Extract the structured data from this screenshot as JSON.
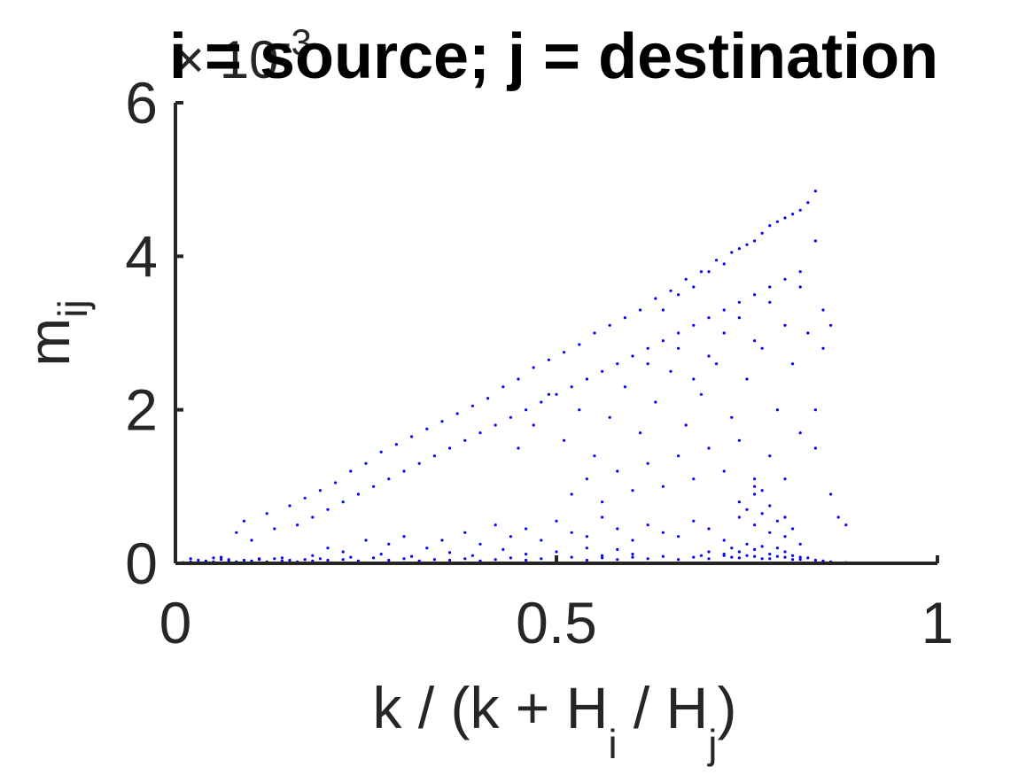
{
  "chart_data": {
    "type": "scatter",
    "title": "i = source; j = destination",
    "xlabel": {
      "text": "k / (k + H",
      "sub_i": "i",
      "mid": " / H",
      "sub_j": "j",
      "end": ")"
    },
    "ylabel": {
      "base": "m",
      "sub": "ij"
    },
    "y_multiplier": {
      "base": "× 10",
      "exponent": "-3"
    },
    "xlim": [
      0,
      1
    ],
    "ylim": [
      0,
      6
    ],
    "x_ticks": [
      {
        "value": 0,
        "label": "0"
      },
      {
        "value": 0.5,
        "label": "0.5"
      },
      {
        "value": 1,
        "label": "1"
      }
    ],
    "y_ticks": [
      {
        "value": 0,
        "label": "0"
      },
      {
        "value": 2,
        "label": "2"
      },
      {
        "value": 4,
        "label": "4"
      },
      {
        "value": 6,
        "label": "6"
      }
    ],
    "grid": false,
    "marker_color": "#0000ff",
    "series": [
      {
        "points": [
          [
            0.01,
            0.01
          ],
          [
            0.02,
            0.02
          ],
          [
            0.03,
            0.01
          ],
          [
            0.04,
            0.03
          ],
          [
            0.05,
            0.02
          ],
          [
            0.06,
            0.05
          ],
          [
            0.07,
            0.03
          ],
          [
            0.08,
            0.02
          ],
          [
            0.09,
            0.04
          ],
          [
            0.1,
            0.03
          ],
          [
            0.11,
            0.05
          ],
          [
            0.12,
            0.02
          ],
          [
            0.13,
            0.06
          ],
          [
            0.14,
            0.03
          ],
          [
            0.15,
            0.04
          ],
          [
            0.16,
            0.02
          ],
          [
            0.17,
            0.05
          ],
          [
            0.18,
            0.03
          ],
          [
            0.19,
            0.06
          ],
          [
            0.2,
            0.04
          ],
          [
            0.22,
            0.05
          ],
          [
            0.24,
            0.03
          ],
          [
            0.26,
            0.07
          ],
          [
            0.28,
            0.04
          ],
          [
            0.3,
            0.06
          ],
          [
            0.32,
            0.03
          ],
          [
            0.34,
            0.05
          ],
          [
            0.36,
            0.04
          ],
          [
            0.38,
            0.06
          ],
          [
            0.4,
            0.03
          ],
          [
            0.42,
            0.05
          ],
          [
            0.44,
            0.07
          ],
          [
            0.46,
            0.04
          ],
          [
            0.48,
            0.06
          ],
          [
            0.5,
            0.05
          ],
          [
            0.52,
            0.08
          ],
          [
            0.54,
            0.04
          ],
          [
            0.56,
            0.07
          ],
          [
            0.58,
            0.05
          ],
          [
            0.6,
            0.08
          ],
          [
            0.62,
            0.06
          ],
          [
            0.64,
            0.09
          ],
          [
            0.66,
            0.05
          ],
          [
            0.68,
            0.08
          ],
          [
            0.7,
            0.06
          ],
          [
            0.72,
            0.1
          ],
          [
            0.74,
            0.07
          ],
          [
            0.76,
            0.09
          ],
          [
            0.78,
            0.06
          ],
          [
            0.8,
            0.08
          ],
          [
            0.82,
            0.05
          ],
          [
            0.84,
            0.04
          ],
          [
            0.86,
            0.02
          ],
          [
            0.88,
            0.01
          ],
          [
            0.08,
            0.4
          ],
          [
            0.09,
            0.55
          ],
          [
            0.1,
            0.3
          ],
          [
            0.12,
            0.65
          ],
          [
            0.13,
            0.45
          ],
          [
            0.15,
            0.75
          ],
          [
            0.16,
            0.5
          ],
          [
            0.17,
            0.85
          ],
          [
            0.18,
            0.6
          ],
          [
            0.19,
            0.95
          ],
          [
            0.2,
            0.7
          ],
          [
            0.21,
            1.05
          ],
          [
            0.22,
            0.8
          ],
          [
            0.23,
            1.2
          ],
          [
            0.24,
            0.9
          ],
          [
            0.25,
            1.3
          ],
          [
            0.26,
            1.0
          ],
          [
            0.27,
            1.45
          ],
          [
            0.28,
            1.1
          ],
          [
            0.29,
            1.55
          ],
          [
            0.3,
            1.2
          ],
          [
            0.31,
            1.65
          ],
          [
            0.32,
            1.3
          ],
          [
            0.33,
            1.75
          ],
          [
            0.34,
            1.4
          ],
          [
            0.35,
            1.85
          ],
          [
            0.36,
            1.5
          ],
          [
            0.37,
            1.95
          ],
          [
            0.38,
            1.6
          ],
          [
            0.39,
            2.05
          ],
          [
            0.4,
            1.7
          ],
          [
            0.41,
            2.15
          ],
          [
            0.42,
            1.8
          ],
          [
            0.43,
            2.3
          ],
          [
            0.44,
            1.9
          ],
          [
            0.45,
            2.4
          ],
          [
            0.46,
            2.0
          ],
          [
            0.47,
            2.55
          ],
          [
            0.48,
            2.1
          ],
          [
            0.49,
            2.65
          ],
          [
            0.5,
            2.2
          ],
          [
            0.51,
            2.75
          ],
          [
            0.52,
            2.3
          ],
          [
            0.53,
            2.85
          ],
          [
            0.54,
            2.4
          ],
          [
            0.55,
            3.0
          ],
          [
            0.56,
            2.5
          ],
          [
            0.57,
            3.1
          ],
          [
            0.58,
            2.6
          ],
          [
            0.59,
            3.2
          ],
          [
            0.6,
            2.7
          ],
          [
            0.61,
            3.3
          ],
          [
            0.62,
            2.8
          ],
          [
            0.63,
            3.45
          ],
          [
            0.64,
            2.9
          ],
          [
            0.65,
            3.55
          ],
          [
            0.66,
            3.0
          ],
          [
            0.67,
            3.7
          ],
          [
            0.68,
            3.1
          ],
          [
            0.69,
            3.8
          ],
          [
            0.7,
            3.2
          ],
          [
            0.71,
            3.95
          ],
          [
            0.72,
            3.3
          ],
          [
            0.73,
            4.05
          ],
          [
            0.74,
            3.4
          ],
          [
            0.75,
            4.15
          ],
          [
            0.76,
            3.5
          ],
          [
            0.77,
            4.3
          ],
          [
            0.78,
            3.6
          ],
          [
            0.79,
            4.45
          ],
          [
            0.8,
            3.7
          ],
          [
            0.81,
            4.55
          ],
          [
            0.82,
            3.8
          ],
          [
            0.83,
            4.7
          ],
          [
            0.84,
            4.85
          ],
          [
            0.84,
            4.2
          ],
          [
            0.85,
            3.3
          ],
          [
            0.85,
            2.8
          ],
          [
            0.86,
            3.1
          ],
          [
            0.84,
            2.0
          ],
          [
            0.82,
            4.6
          ],
          [
            0.8,
            4.5
          ],
          [
            0.78,
            4.4
          ],
          [
            0.76,
            4.2
          ],
          [
            0.74,
            4.1
          ],
          [
            0.72,
            3.9
          ],
          [
            0.7,
            3.8
          ],
          [
            0.68,
            3.6
          ],
          [
            0.66,
            3.5
          ],
          [
            0.64,
            3.3
          ],
          [
            0.45,
            1.5
          ],
          [
            0.47,
            1.8
          ],
          [
            0.49,
            2.2
          ],
          [
            0.51,
            1.6
          ],
          [
            0.53,
            2.0
          ],
          [
            0.55,
            1.4
          ],
          [
            0.57,
            1.9
          ],
          [
            0.59,
            2.3
          ],
          [
            0.61,
            1.7
          ],
          [
            0.63,
            2.1
          ],
          [
            0.65,
            2.5
          ],
          [
            0.67,
            1.8
          ],
          [
            0.69,
            2.2
          ],
          [
            0.71,
            2.6
          ],
          [
            0.73,
            1.9
          ],
          [
            0.75,
            2.4
          ],
          [
            0.77,
            2.8
          ],
          [
            0.79,
            2.0
          ],
          [
            0.81,
            2.6
          ],
          [
            0.83,
            3.0
          ],
          [
            0.52,
            0.9
          ],
          [
            0.54,
            1.1
          ],
          [
            0.56,
            0.8
          ],
          [
            0.58,
            1.2
          ],
          [
            0.6,
            0.95
          ],
          [
            0.62,
            1.3
          ],
          [
            0.64,
            1.0
          ],
          [
            0.66,
            1.4
          ],
          [
            0.68,
            1.1
          ],
          [
            0.7,
            1.5
          ],
          [
            0.72,
            1.2
          ],
          [
            0.74,
            1.6
          ],
          [
            0.76,
            1.0
          ],
          [
            0.78,
            1.4
          ],
          [
            0.8,
            1.1
          ],
          [
            0.82,
            1.7
          ],
          [
            0.84,
            1.5
          ],
          [
            0.86,
            0.9
          ],
          [
            0.87,
            0.6
          ],
          [
            0.88,
            0.5
          ],
          [
            0.72,
            3.0
          ],
          [
            0.74,
            3.2
          ],
          [
            0.76,
            2.9
          ],
          [
            0.78,
            3.4
          ],
          [
            0.8,
            3.1
          ],
          [
            0.82,
            3.6
          ],
          [
            0.7,
            2.7
          ],
          [
            0.68,
            2.4
          ],
          [
            0.66,
            2.8
          ],
          [
            0.62,
            2.6
          ],
          [
            0.2,
            0.2
          ],
          [
            0.22,
            0.15
          ],
          [
            0.25,
            0.3
          ],
          [
            0.28,
            0.25
          ],
          [
            0.3,
            0.35
          ],
          [
            0.33,
            0.2
          ],
          [
            0.35,
            0.3
          ],
          [
            0.38,
            0.4
          ],
          [
            0.4,
            0.25
          ],
          [
            0.42,
            0.5
          ],
          [
            0.44,
            0.35
          ],
          [
            0.46,
            0.45
          ],
          [
            0.48,
            0.3
          ],
          [
            0.5,
            0.55
          ],
          [
            0.52,
            0.4
          ],
          [
            0.54,
            0.35
          ],
          [
            0.56,
            0.6
          ],
          [
            0.58,
            0.45
          ],
          [
            0.6,
            0.3
          ],
          [
            0.62,
            0.5
          ],
          [
            0.64,
            0.4
          ],
          [
            0.66,
            0.35
          ],
          [
            0.68,
            0.55
          ],
          [
            0.7,
            0.45
          ],
          [
            0.72,
            0.3
          ],
          [
            0.74,
            0.6
          ],
          [
            0.76,
            0.5
          ],
          [
            0.78,
            0.4
          ],
          [
            0.8,
            0.35
          ],
          [
            0.82,
            0.25
          ],
          [
            0.74,
            0.8
          ],
          [
            0.75,
            0.7
          ],
          [
            0.76,
            0.9
          ],
          [
            0.77,
            0.65
          ],
          [
            0.78,
            0.75
          ],
          [
            0.79,
            0.55
          ],
          [
            0.8,
            0.6
          ],
          [
            0.81,
            0.45
          ],
          [
            0.76,
            1.1
          ],
          [
            0.77,
            0.95
          ],
          [
            0.73,
            0.2
          ],
          [
            0.74,
            0.15
          ],
          [
            0.75,
            0.25
          ],
          [
            0.76,
            0.18
          ],
          [
            0.77,
            0.22
          ],
          [
            0.78,
            0.12
          ],
          [
            0.79,
            0.2
          ],
          [
            0.8,
            0.15
          ],
          [
            0.81,
            0.1
          ],
          [
            0.82,
            0.08
          ],
          [
            0.72,
            0.12
          ],
          [
            0.73,
            0.08
          ],
          [
            0.75,
            0.1
          ],
          [
            0.77,
            0.06
          ],
          [
            0.79,
            0.09
          ],
          [
            0.81,
            0.05
          ],
          [
            0.83,
            0.07
          ],
          [
            0.85,
            0.03
          ],
          [
            0.7,
            0.15
          ],
          [
            0.69,
            0.1
          ],
          [
            0.6,
            0.12
          ],
          [
            0.58,
            0.18
          ],
          [
            0.56,
            0.1
          ],
          [
            0.54,
            0.2
          ],
          [
            0.5,
            0.15
          ],
          [
            0.46,
            0.12
          ],
          [
            0.43,
            0.18
          ],
          [
            0.39,
            0.1
          ],
          [
            0.36,
            0.14
          ],
          [
            0.31,
            0.09
          ],
          [
            0.27,
            0.12
          ],
          [
            0.23,
            0.08
          ],
          [
            0.18,
            0.1
          ],
          [
            0.14,
            0.07
          ],
          [
            0.11,
            0.06
          ],
          [
            0.07,
            0.05
          ],
          [
            0.05,
            0.07
          ],
          [
            0.03,
            0.04
          ],
          [
            0.02,
            0.06
          ],
          [
            0.06,
            0.08
          ]
        ]
      }
    ]
  }
}
